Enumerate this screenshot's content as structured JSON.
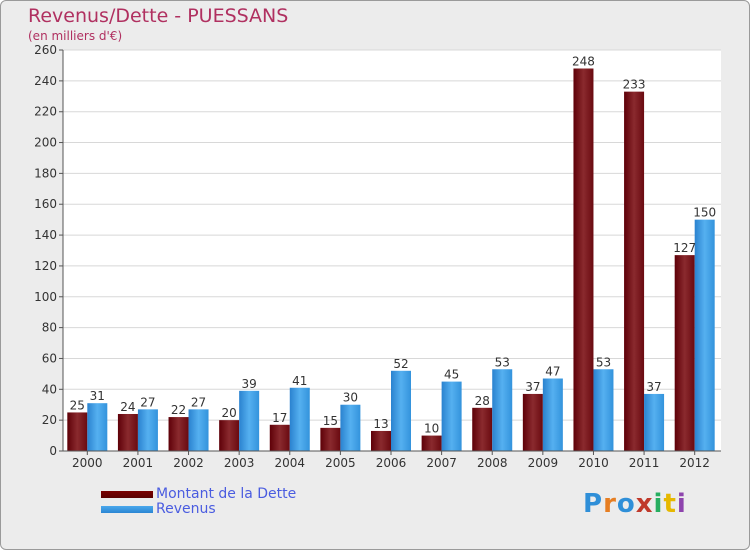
{
  "header": {
    "title": "Revenus/Dette - PUESSANS",
    "subtitle": "(en milliers d'€)"
  },
  "legend": {
    "debt_label": "Montant de la Dette",
    "revenue_label": "Revenus"
  },
  "logo": {
    "text": "Proxiti"
  },
  "colors": {
    "debt": "#7a0f14",
    "revenue": "#3b9be3",
    "title": "#b03060",
    "legend_text": "#4a5ce0"
  },
  "chart_data": {
    "type": "bar",
    "title": "Revenus/Dette - PUESSANS",
    "subtitle": "(en milliers d'€)",
    "categories": [
      "2000",
      "2001",
      "2002",
      "2003",
      "2004",
      "2005",
      "2006",
      "2007",
      "2008",
      "2009",
      "2010",
      "2011",
      "2012"
    ],
    "series": [
      {
        "name": "Montant de la Dette",
        "values": [
          25,
          24,
          22,
          20,
          17,
          15,
          13,
          10,
          28,
          37,
          248,
          233,
          127
        ]
      },
      {
        "name": "Revenus",
        "values": [
          31,
          27,
          27,
          39,
          41,
          30,
          52,
          45,
          53,
          47,
          53,
          37,
          150
        ]
      }
    ],
    "ylim": [
      0,
      260
    ],
    "yticks": [
      0,
      20,
      40,
      60,
      80,
      100,
      120,
      140,
      160,
      180,
      200,
      220,
      240,
      260
    ],
    "grid": true,
    "legend_position": "bottom-left"
  }
}
